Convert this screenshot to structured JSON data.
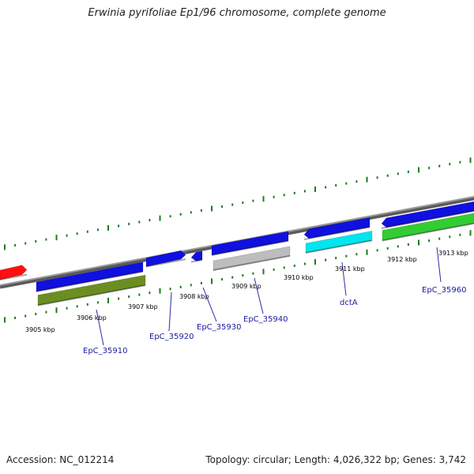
{
  "title": "Erwinia pyrifoliae Ep1/96 chromosome, complete genome",
  "footer": {
    "accession": "Accession: NC_012214",
    "summary": "Topology: circular; Length: 4,026,322 bp; Genes: 3,742"
  },
  "colors": {
    "backbone": "#8a8a8a",
    "tick": "#1f7a1f",
    "label_line": "#2a2aa8"
  },
  "ticks": [
    {
      "label": "3905 kbp"
    },
    {
      "label": "3906 kbp"
    },
    {
      "label": "3907 kbp"
    },
    {
      "label": "3908 kbp"
    },
    {
      "label": "3909 kbp"
    },
    {
      "label": "3910 kbp"
    },
    {
      "label": "3911 kbp"
    },
    {
      "label": "3912 kbp"
    },
    {
      "label": "3913 kbp"
    }
  ],
  "genes": [
    {
      "label": "",
      "color": "#ff1010"
    },
    {
      "label": "",
      "color": "#1010e0"
    },
    {
      "label": "EpC_35910",
      "color": "#6b8e23"
    },
    {
      "label": "EpC_35920",
      "color": "#1010e0"
    },
    {
      "label": "EpC_35930",
      "color": "#1010e0"
    },
    {
      "label": "EpC_35940",
      "color": "#1010e0"
    },
    {
      "label": "",
      "color": "#bdbdbd"
    },
    {
      "label": "",
      "color": "#1010e0"
    },
    {
      "label": "dctA",
      "color": "#00e5ee"
    },
    {
      "label": "",
      "color": "#1010e0"
    },
    {
      "label": "EpC_35960",
      "color": "#32cd32"
    }
  ]
}
